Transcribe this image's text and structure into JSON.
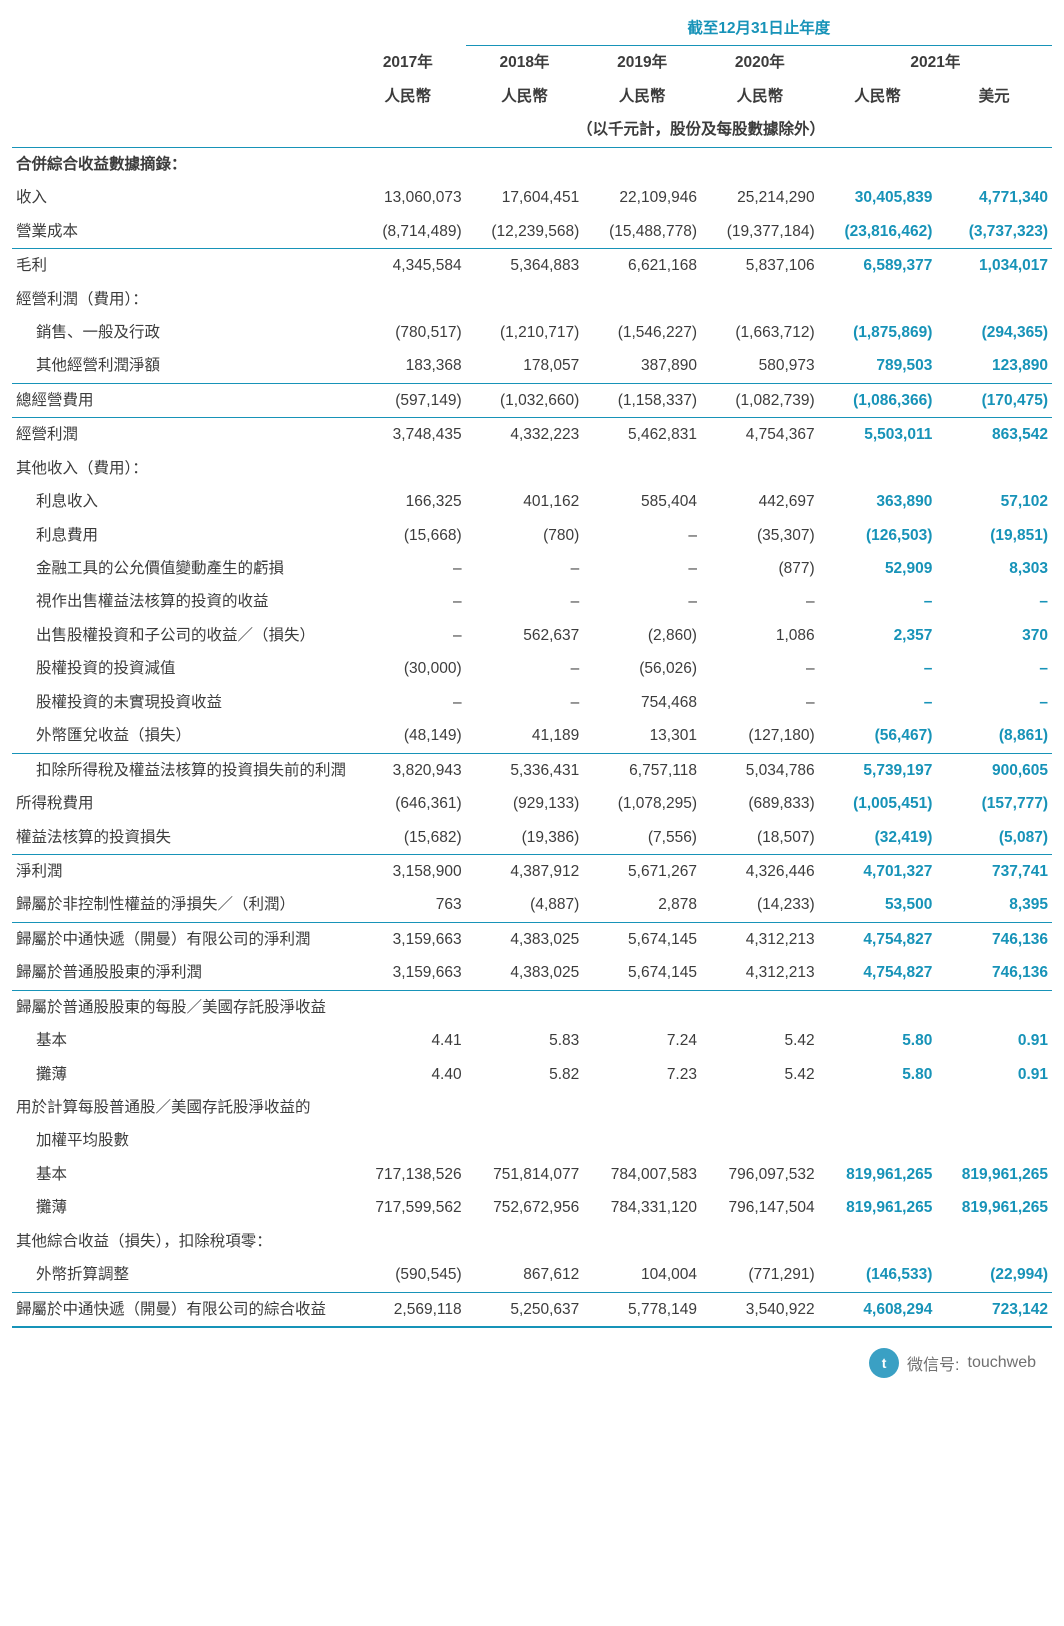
{
  "colors": {
    "accent": "#1793b8",
    "text": "#3c3c3c",
    "bg": "#ffffff"
  },
  "header": {
    "period_title": "截至12月31日止年度",
    "unit_note": "（以千元計，股份及每股數據除外）",
    "years": [
      "2017年",
      "2018年",
      "2019年",
      "2020年",
      "2021年"
    ],
    "currencies": [
      "人民幣",
      "人民幣",
      "人民幣",
      "人民幣",
      "人民幣",
      "美元"
    ]
  },
  "section_title": "合併綜合收益數據摘錄：",
  "rows": [
    {
      "k": "rev",
      "label": "收入",
      "v": [
        "13,060,073",
        "17,604,451",
        "22,109,946",
        "25,214,290",
        "30,405,839",
        "4,771,340"
      ]
    },
    {
      "k": "cogs",
      "label": "營業成本",
      "rule_bottom": true,
      "v": [
        "(8,714,489)",
        "(12,239,568)",
        "(15,488,778)",
        "(19,377,184)",
        "(23,816,462)",
        "(3,737,323)"
      ]
    },
    {
      "k": "gp",
      "label": "毛利",
      "v": [
        "4,345,584",
        "5,364,883",
        "6,621,168",
        "5,837,106",
        "6,589,377",
        "1,034,017"
      ]
    },
    {
      "k": "opexp_hdr",
      "label": "經營利潤（費用）：",
      "nodata": true
    },
    {
      "k": "sga",
      "label": "銷售、一般及行政",
      "indent": 1,
      "v": [
        "(780,517)",
        "(1,210,717)",
        "(1,546,227)",
        "(1,663,712)",
        "(1,875,869)",
        "(294,365)"
      ]
    },
    {
      "k": "oop",
      "label": "其他經營利潤淨額",
      "indent": 1,
      "rule_bottom": true,
      "v": [
        "183,368",
        "178,057",
        "387,890",
        "580,973",
        "789,503",
        "123,890"
      ]
    },
    {
      "k": "totop",
      "label": "總經營費用",
      "rule_bottom": true,
      "v": [
        "(597,149)",
        "(1,032,660)",
        "(1,158,337)",
        "(1,082,739)",
        "(1,086,366)",
        "(170,475)"
      ]
    },
    {
      "k": "opinc",
      "label": "經營利潤",
      "v": [
        "3,748,435",
        "4,332,223",
        "5,462,831",
        "4,754,367",
        "5,503,011",
        "863,542"
      ]
    },
    {
      "k": "othinc_hdr",
      "label": "其他收入（費用）：",
      "nodata": true
    },
    {
      "k": "intinc",
      "label": "利息收入",
      "indent": 1,
      "v": [
        "166,325",
        "401,162",
        "585,404",
        "442,697",
        "363,890",
        "57,102"
      ]
    },
    {
      "k": "intexp",
      "label": "利息費用",
      "indent": 1,
      "v": [
        "(15,668)",
        "(780)",
        "–",
        "(35,307)",
        "(126,503)",
        "(19,851)"
      ]
    },
    {
      "k": "fv",
      "label": "金融工具的公允價值變動產生的虧損",
      "indent": 1,
      "v": [
        "–",
        "–",
        "–",
        "(877)",
        "52,909",
        "8,303"
      ]
    },
    {
      "k": "deemed",
      "label": "視作出售權益法核算的投資的收益",
      "indent": 1,
      "v": [
        "–",
        "–",
        "–",
        "–",
        "–",
        "–"
      ]
    },
    {
      "k": "dispgl",
      "label": "出售股權投資和子公司的收益／（損失）",
      "indent": 1,
      "v": [
        "–",
        "562,637",
        "(2,860)",
        "1,086",
        "2,357",
        "370"
      ]
    },
    {
      "k": "impair",
      "label": "股權投資的投資減值",
      "indent": 1,
      "v": [
        "(30,000)",
        "–",
        "(56,026)",
        "–",
        "–",
        "–"
      ]
    },
    {
      "k": "unreal",
      "label": "股權投資的未實現投資收益",
      "indent": 1,
      "v": [
        "–",
        "–",
        "754,468",
        "–",
        "–",
        "–"
      ]
    },
    {
      "k": "fx",
      "label": "外幣匯兌收益（損失）",
      "indent": 1,
      "rule_bottom": true,
      "v": [
        "(48,149)",
        "41,189",
        "13,301",
        "(127,180)",
        "(56,467)",
        "(8,861)"
      ]
    },
    {
      "k": "pretax",
      "label": "扣除所得稅及權益法核算的投資損失前的利潤",
      "indent": 1,
      "v": [
        "3,820,943",
        "5,336,431",
        "6,757,118",
        "5,034,786",
        "5,739,197",
        "900,605"
      ]
    },
    {
      "k": "tax",
      "label": "所得稅費用",
      "v": [
        "(646,361)",
        "(929,133)",
        "(1,078,295)",
        "(689,833)",
        "(1,005,451)",
        "(157,777)"
      ]
    },
    {
      "k": "equloss",
      "label": "權益法核算的投資損失",
      "rule_bottom": true,
      "v": [
        "(15,682)",
        "(19,386)",
        "(7,556)",
        "(18,507)",
        "(32,419)",
        "(5,087)"
      ]
    },
    {
      "k": "np",
      "label": "淨利潤",
      "v": [
        "3,158,900",
        "4,387,912",
        "5,671,267",
        "4,326,446",
        "4,701,327",
        "737,741"
      ]
    },
    {
      "k": "nci",
      "label": "歸屬於非控制性權益的淨損失／（利潤）",
      "rule_bottom": true,
      "v": [
        "763",
        "(4,887)",
        "2,878",
        "(14,233)",
        "53,500",
        "8,395"
      ]
    },
    {
      "k": "np_co",
      "label": "歸屬於中通快遞（開曼）有限公司的淨利潤",
      "v": [
        "3,159,663",
        "4,383,025",
        "5,674,145",
        "4,312,213",
        "4,754,827",
        "746,136"
      ]
    },
    {
      "k": "np_ord",
      "label": "歸屬於普通股股東的淨利潤",
      "rule_bottom": true,
      "v": [
        "3,159,663",
        "4,383,025",
        "5,674,145",
        "4,312,213",
        "4,754,827",
        "746,136"
      ]
    },
    {
      "k": "eps_hdr",
      "label": "歸屬於普通股股東的每股／美國存託股淨收益",
      "nodata": true
    },
    {
      "k": "eps_b",
      "label": "基本",
      "indent": 1,
      "v": [
        "4.41",
        "5.83",
        "7.24",
        "5.42",
        "5.80",
        "0.91"
      ]
    },
    {
      "k": "eps_d",
      "label": "攤薄",
      "indent": 1,
      "v": [
        "4.40",
        "5.82",
        "7.23",
        "5.42",
        "5.80",
        "0.91"
      ]
    },
    {
      "k": "wa_hdr1",
      "label": "用於計算每股普通股／美國存託股淨收益的",
      "nodata": true
    },
    {
      "k": "wa_hdr2",
      "label": "加權平均股數",
      "indent": 1,
      "nodata": true
    },
    {
      "k": "wa_b",
      "label": "基本",
      "indent": 1,
      "v": [
        "717,138,526",
        "751,814,077",
        "784,007,583",
        "796,097,532",
        "819,961,265",
        "819,961,265"
      ]
    },
    {
      "k": "wa_d",
      "label": "攤薄",
      "indent": 1,
      "v": [
        "717,599,562",
        "752,672,956",
        "784,331,120",
        "796,147,504",
        "819,961,265",
        "819,961,265"
      ]
    },
    {
      "k": "oci_hdr",
      "label": "其他綜合收益（損失），扣除稅項零：",
      "nodata": true
    },
    {
      "k": "fcta",
      "label": "外幣折算調整",
      "indent": 1,
      "rule_bottom": true,
      "v": [
        "(590,545)",
        "867,612",
        "104,004",
        "(771,291)",
        "(146,533)",
        "(22,994)"
      ]
    },
    {
      "k": "tci",
      "label": "歸屬於中通快遞（開曼）有限公司的綜合收益",
      "rule_heavy": true,
      "v": [
        "2,569,118",
        "5,250,637",
        "5,778,149",
        "3,540,922",
        "4,608,294",
        "723,142"
      ]
    }
  ],
  "footer": {
    "prefix": "微信号:",
    "handle": "touchweb",
    "avatar": "t"
  }
}
